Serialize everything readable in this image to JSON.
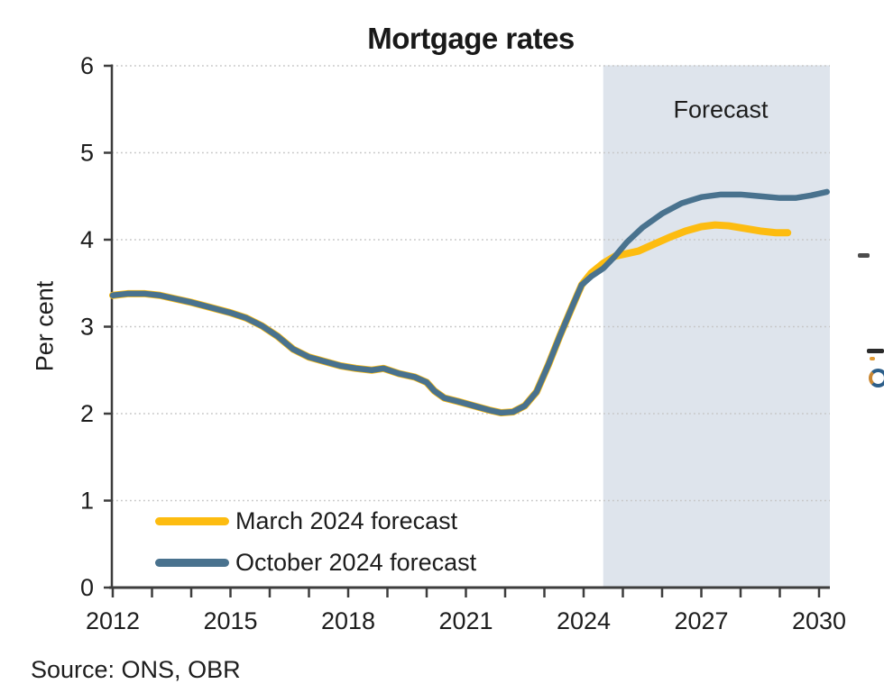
{
  "chart": {
    "title": "Mortgage rates",
    "y_axis_title": "Per cent",
    "forecast_label": "Forecast",
    "source": "Source: ONS, OBR"
  },
  "chart_data": {
    "type": "line",
    "title": "Mortgage rates",
    "xlabel": "",
    "ylabel": "Per cent",
    "xlim": [
      2012,
      2030.3
    ],
    "ylim": [
      0,
      6
    ],
    "y_ticks": [
      0,
      1,
      2,
      3,
      4,
      5,
      6
    ],
    "x_ticks": [
      {
        "year": 2012,
        "label": "2012"
      },
      {
        "year": 2013,
        "label": ""
      },
      {
        "year": 2014,
        "label": ""
      },
      {
        "year": 2015,
        "label": "2015"
      },
      {
        "year": 2016,
        "label": ""
      },
      {
        "year": 2017,
        "label": ""
      },
      {
        "year": 2018,
        "label": "2018"
      },
      {
        "year": 2019,
        "label": ""
      },
      {
        "year": 2020,
        "label": ""
      },
      {
        "year": 2021,
        "label": "2021"
      },
      {
        "year": 2022,
        "label": ""
      },
      {
        "year": 2023,
        "label": ""
      },
      {
        "year": 2024,
        "label": "2024"
      },
      {
        "year": 2025,
        "label": ""
      },
      {
        "year": 2026,
        "label": ""
      },
      {
        "year": 2027,
        "label": "2027"
      },
      {
        "year": 2028,
        "label": ""
      },
      {
        "year": 2029,
        "label": ""
      },
      {
        "year": 2030,
        "label": "2030"
      }
    ],
    "grid": "dotted horizontal gridlines at integer values",
    "legend_position": "inside lower-left",
    "forecast_band": {
      "start": 2024.5,
      "end": 2030.3,
      "label": "Forecast",
      "color": "#dee4ec"
    },
    "colors": {
      "march_line": "#fdbc10",
      "october_line": "#49728e",
      "grid": "#c6c6c6",
      "axis": "#3d3d3d",
      "text": "#1d1d1d",
      "band": "#dee4ec"
    },
    "series": [
      {
        "name": "March 2024 forecast",
        "color": "#fdbc10",
        "points": [
          [
            2012.0,
            3.36
          ],
          [
            2012.4,
            3.38
          ],
          [
            2012.8,
            3.38
          ],
          [
            2013.2,
            3.36
          ],
          [
            2013.6,
            3.32
          ],
          [
            2014.0,
            3.28
          ],
          [
            2014.5,
            3.22
          ],
          [
            2015.0,
            3.16
          ],
          [
            2015.4,
            3.1
          ],
          [
            2015.8,
            3.01
          ],
          [
            2016.2,
            2.89
          ],
          [
            2016.6,
            2.74
          ],
          [
            2017.0,
            2.65
          ],
          [
            2017.4,
            2.6
          ],
          [
            2017.8,
            2.55
          ],
          [
            2018.2,
            2.52
          ],
          [
            2018.6,
            2.5
          ],
          [
            2018.9,
            2.52
          ],
          [
            2019.3,
            2.46
          ],
          [
            2019.7,
            2.42
          ],
          [
            2020.0,
            2.36
          ],
          [
            2020.2,
            2.26
          ],
          [
            2020.45,
            2.18
          ],
          [
            2020.8,
            2.14
          ],
          [
            2021.2,
            2.09
          ],
          [
            2021.6,
            2.04
          ],
          [
            2021.9,
            2.01
          ],
          [
            2022.2,
            2.02
          ],
          [
            2022.5,
            2.09
          ],
          [
            2022.8,
            2.25
          ],
          [
            2023.1,
            2.56
          ],
          [
            2023.4,
            2.9
          ],
          [
            2023.7,
            3.22
          ],
          [
            2023.95,
            3.48
          ],
          [
            2024.2,
            3.62
          ],
          [
            2024.5,
            3.73
          ],
          [
            2024.8,
            3.81
          ],
          [
            2025.1,
            3.84
          ],
          [
            2025.4,
            3.87
          ],
          [
            2025.8,
            3.95
          ],
          [
            2026.2,
            4.03
          ],
          [
            2026.6,
            4.1
          ],
          [
            2027.0,
            4.15
          ],
          [
            2027.35,
            4.17
          ],
          [
            2027.7,
            4.16
          ],
          [
            2028.1,
            4.13
          ],
          [
            2028.5,
            4.1
          ],
          [
            2028.9,
            4.08
          ],
          [
            2029.2,
            4.08
          ]
        ]
      },
      {
        "name": "October 2024 forecast",
        "color": "#49728e",
        "points": [
          [
            2012.0,
            3.36
          ],
          [
            2012.4,
            3.38
          ],
          [
            2012.8,
            3.38
          ],
          [
            2013.2,
            3.36
          ],
          [
            2013.6,
            3.32
          ],
          [
            2014.0,
            3.28
          ],
          [
            2014.5,
            3.22
          ],
          [
            2015.0,
            3.16
          ],
          [
            2015.4,
            3.1
          ],
          [
            2015.8,
            3.01
          ],
          [
            2016.2,
            2.89
          ],
          [
            2016.6,
            2.74
          ],
          [
            2017.0,
            2.65
          ],
          [
            2017.4,
            2.6
          ],
          [
            2017.8,
            2.55
          ],
          [
            2018.2,
            2.52
          ],
          [
            2018.6,
            2.5
          ],
          [
            2018.9,
            2.52
          ],
          [
            2019.3,
            2.46
          ],
          [
            2019.7,
            2.42
          ],
          [
            2020.0,
            2.36
          ],
          [
            2020.2,
            2.26
          ],
          [
            2020.45,
            2.18
          ],
          [
            2020.8,
            2.14
          ],
          [
            2021.2,
            2.09
          ],
          [
            2021.6,
            2.04
          ],
          [
            2021.9,
            2.01
          ],
          [
            2022.2,
            2.02
          ],
          [
            2022.5,
            2.09
          ],
          [
            2022.8,
            2.25
          ],
          [
            2023.1,
            2.56
          ],
          [
            2023.4,
            2.9
          ],
          [
            2023.7,
            3.22
          ],
          [
            2023.95,
            3.48
          ],
          [
            2024.2,
            3.58
          ],
          [
            2024.5,
            3.67
          ],
          [
            2024.8,
            3.81
          ],
          [
            2025.1,
            3.97
          ],
          [
            2025.5,
            4.14
          ],
          [
            2026.0,
            4.3
          ],
          [
            2026.5,
            4.42
          ],
          [
            2027.0,
            4.49
          ],
          [
            2027.5,
            4.52
          ],
          [
            2028.0,
            4.52
          ],
          [
            2028.5,
            4.5
          ],
          [
            2029.0,
            4.48
          ],
          [
            2029.4,
            4.48
          ],
          [
            2029.8,
            4.51
          ],
          [
            2030.2,
            4.55
          ]
        ]
      }
    ]
  }
}
